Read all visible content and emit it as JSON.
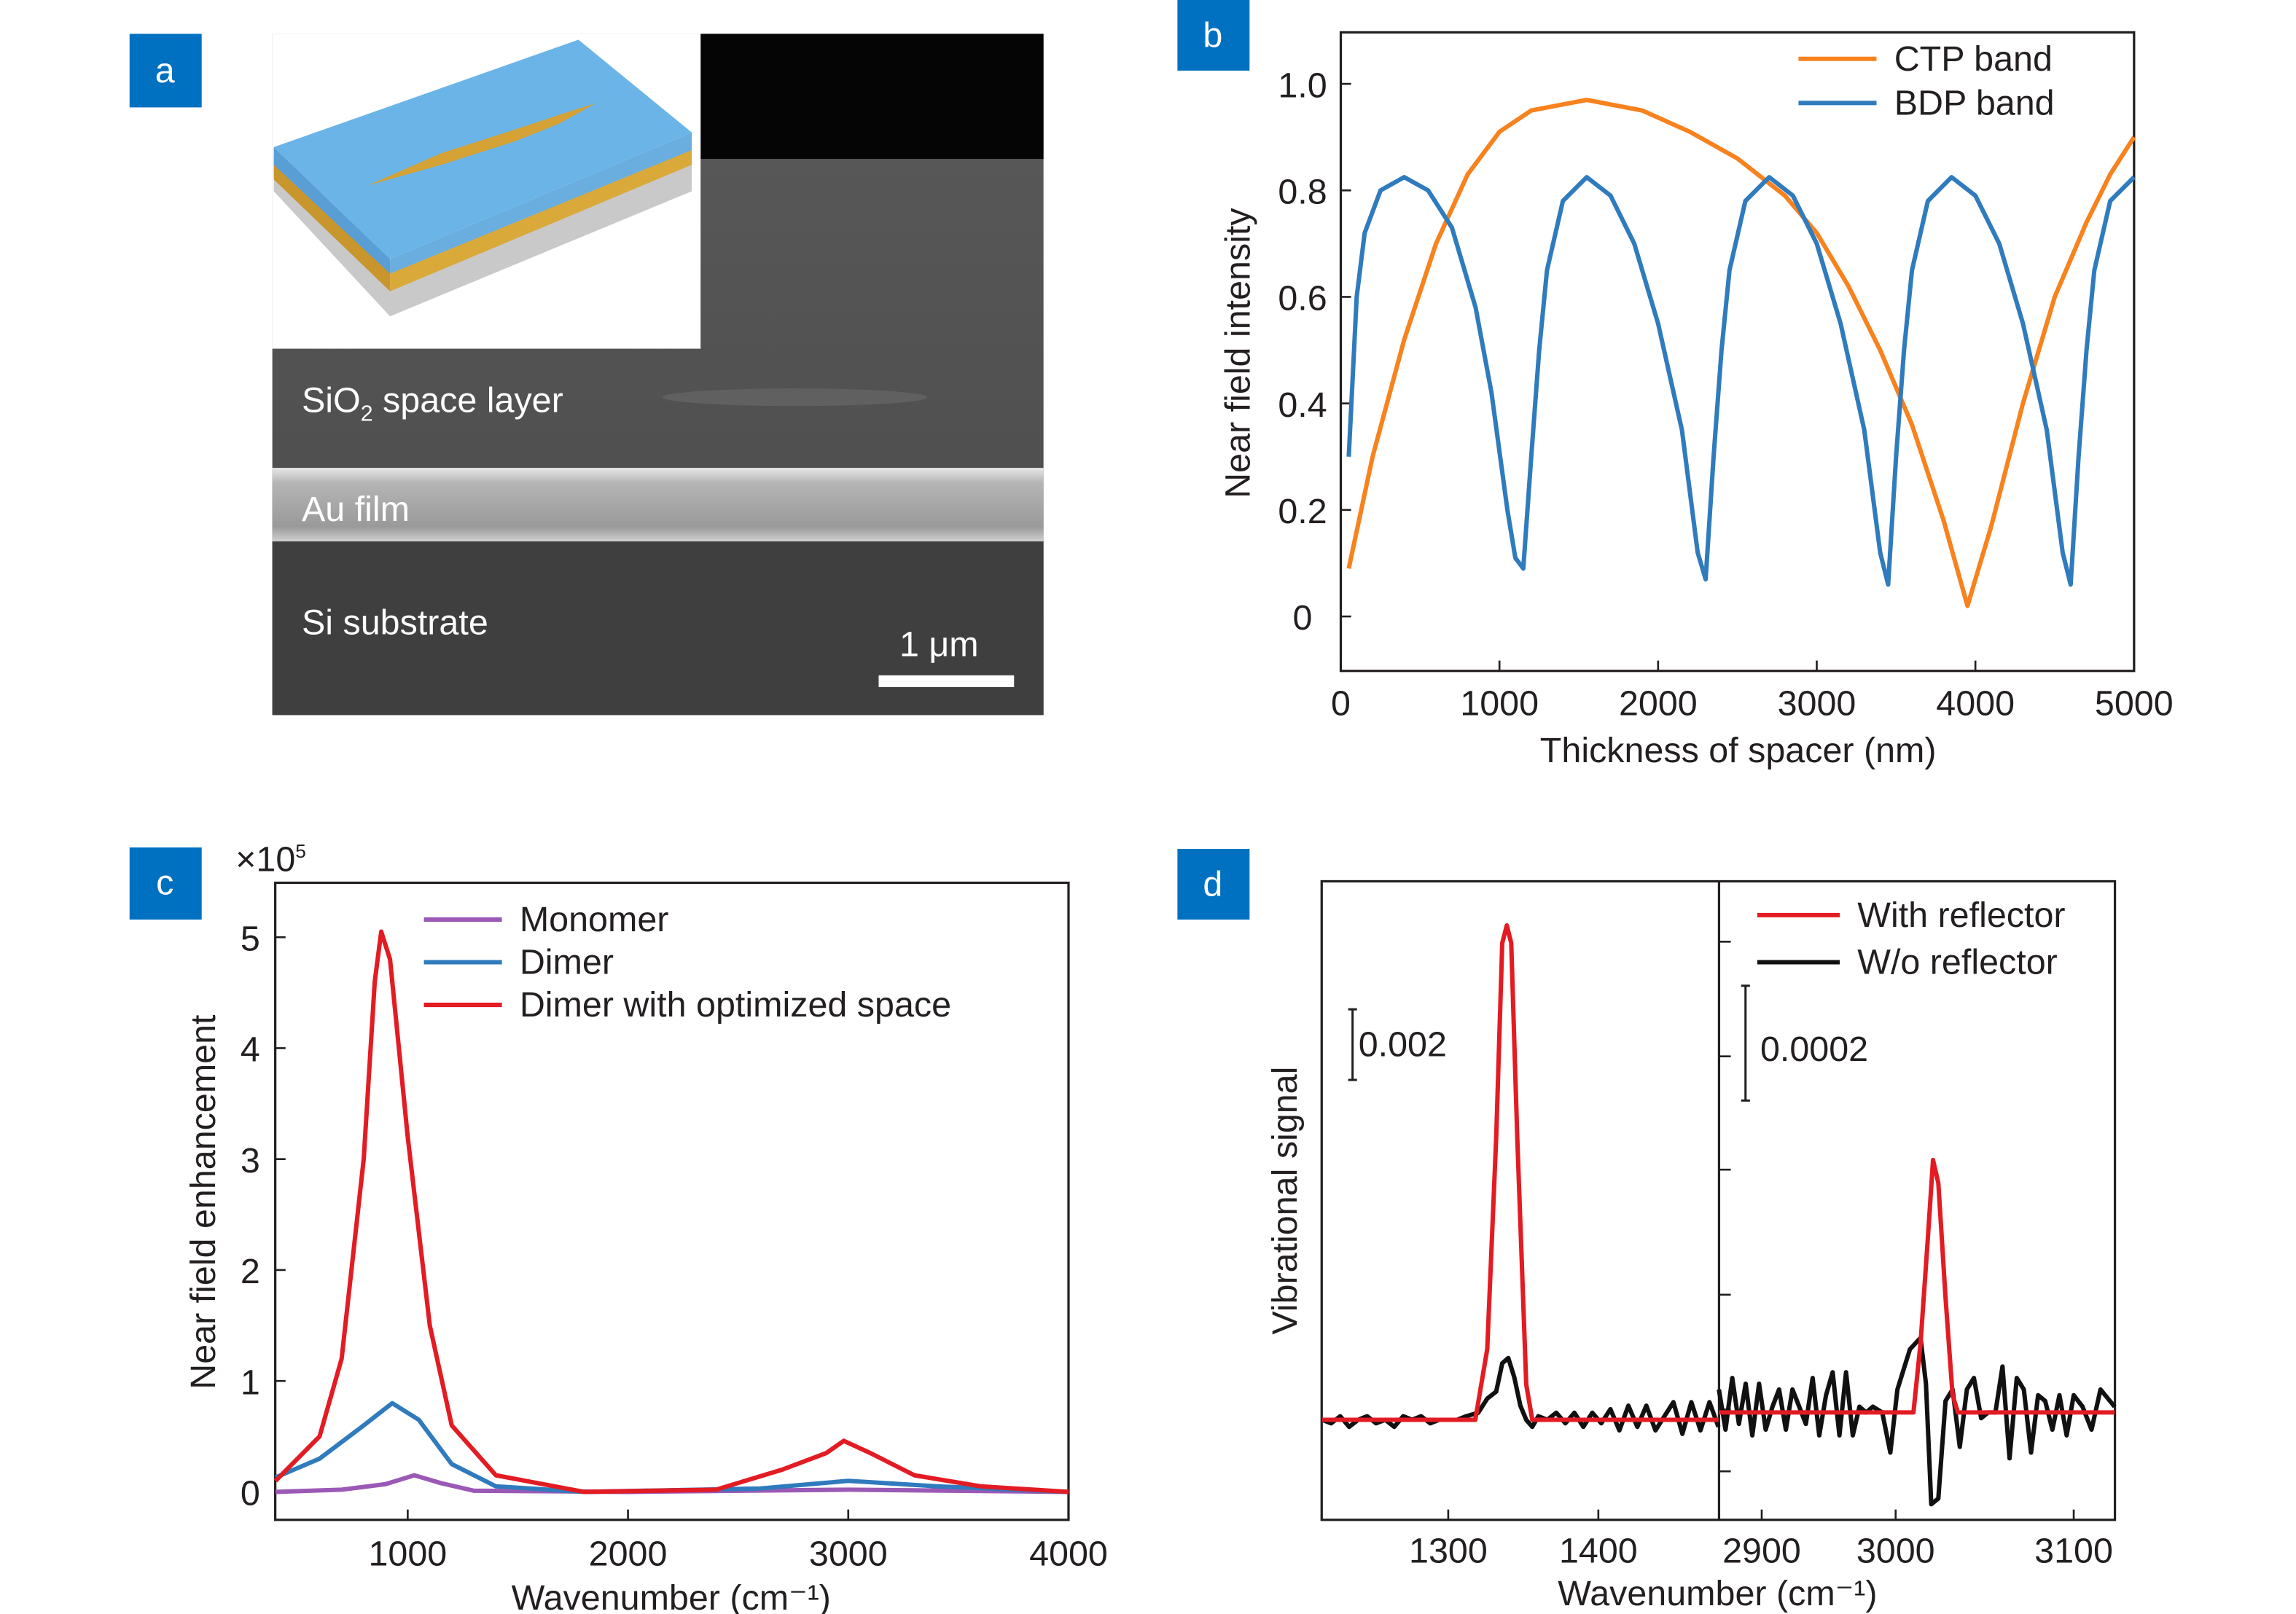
{
  "panels": {
    "a": {
      "label": "a",
      "sio2_text": "SiO",
      "sio2_sub": "2",
      "sio2_rest": " space layer",
      "au_text": "Au film",
      "si_text": "Si substrate",
      "scale_bar": "1 μm"
    },
    "b": {
      "label": "b"
    },
    "c": {
      "label": "c",
      "multiplier": "×10",
      "multiplier_exp": "5"
    },
    "d": {
      "label": "d",
      "scale_left": "0.002",
      "scale_right": "0.0002"
    }
  },
  "colors": {
    "label_box": "#0070c0",
    "orange": "#f7821e",
    "blue": "#2f7bbd",
    "red": "#e31b23",
    "purple": "#9b59b6",
    "black": "#111111"
  },
  "chart_data": [
    {
      "id": "b",
      "type": "line",
      "xlabel": "Thickness of spacer (nm)",
      "ylabel": "Near field intensity",
      "xlim": [
        0,
        5000
      ],
      "ylim": [
        -0.1,
        1.1
      ],
      "xticks": [
        "0",
        "1000",
        "2000",
        "3000",
        "4000",
        "5000"
      ],
      "yticks": [
        "0",
        "0.2",
        "0.4",
        "0.6",
        "0.8",
        "1.0"
      ],
      "legend": "top-right",
      "grid": false,
      "series": [
        {
          "name": "CTP band",
          "color": "#f7821e",
          "points": [
            [
              50,
              0.09
            ],
            [
              200,
              0.3
            ],
            [
              400,
              0.52
            ],
            [
              600,
              0.7
            ],
            [
              800,
              0.83
            ],
            [
              1000,
              0.91
            ],
            [
              1200,
              0.95
            ],
            [
              1550,
              0.97
            ],
            [
              1900,
              0.95
            ],
            [
              2200,
              0.91
            ],
            [
              2500,
              0.86
            ],
            [
              2800,
              0.79
            ],
            [
              3000,
              0.72
            ],
            [
              3200,
              0.62
            ],
            [
              3400,
              0.5
            ],
            [
              3600,
              0.36
            ],
            [
              3800,
              0.18
            ],
            [
              3950,
              0.02
            ],
            [
              4100,
              0.17
            ],
            [
              4300,
              0.4
            ],
            [
              4500,
              0.6
            ],
            [
              4700,
              0.74
            ],
            [
              4850,
              0.83
            ],
            [
              5000,
              0.9
            ]
          ]
        },
        {
          "name": "BDP band",
          "color": "#2f7bbd",
          "points": [
            [
              50,
              0.3
            ],
            [
              100,
              0.6
            ],
            [
              150,
              0.72
            ],
            [
              250,
              0.8
            ],
            [
              400,
              0.825
            ],
            [
              550,
              0.8
            ],
            [
              700,
              0.73
            ],
            [
              850,
              0.58
            ],
            [
              950,
              0.42
            ],
            [
              1050,
              0.2
            ],
            [
              1100,
              0.11
            ],
            [
              1150,
              0.09
            ],
            [
              1200,
              0.3
            ],
            [
              1250,
              0.5
            ],
            [
              1300,
              0.65
            ],
            [
              1400,
              0.78
            ],
            [
              1550,
              0.825
            ],
            [
              1700,
              0.79
            ],
            [
              1850,
              0.7
            ],
            [
              2000,
              0.55
            ],
            [
              2150,
              0.35
            ],
            [
              2250,
              0.12
            ],
            [
              2300,
              0.07
            ],
            [
              2350,
              0.3
            ],
            [
              2400,
              0.5
            ],
            [
              2450,
              0.65
            ],
            [
              2550,
              0.78
            ],
            [
              2700,
              0.825
            ],
            [
              2850,
              0.79
            ],
            [
              3000,
              0.7
            ],
            [
              3150,
              0.55
            ],
            [
              3300,
              0.35
            ],
            [
              3400,
              0.12
            ],
            [
              3450,
              0.06
            ],
            [
              3500,
              0.3
            ],
            [
              3550,
              0.5
            ],
            [
              3600,
              0.65
            ],
            [
              3700,
              0.78
            ],
            [
              3850,
              0.825
            ],
            [
              4000,
              0.79
            ],
            [
              4150,
              0.7
            ],
            [
              4300,
              0.55
            ],
            [
              4450,
              0.35
            ],
            [
              4550,
              0.12
            ],
            [
              4600,
              0.06
            ],
            [
              4650,
              0.3
            ],
            [
              4700,
              0.5
            ],
            [
              4750,
              0.65
            ],
            [
              4850,
              0.78
            ],
            [
              5000,
              0.825
            ]
          ]
        }
      ]
    },
    {
      "id": "c",
      "type": "line",
      "xlabel": "Wavenumber (cm⁻¹)",
      "ylabel": "Near field enhancement",
      "xlim": [
        400,
        4000
      ],
      "ylim": [
        -0.25,
        5.5
      ],
      "xticks": [
        "1000",
        "2000",
        "3000",
        "4000"
      ],
      "yticks": [
        "0",
        "1",
        "2",
        "3",
        "4",
        "5"
      ],
      "legend": "top-right",
      "grid": false,
      "series": [
        {
          "name": "Monomer",
          "color": "#9b59b6",
          "points": [
            [
              400,
              0
            ],
            [
              700,
              0.02
            ],
            [
              900,
              0.07
            ],
            [
              1030,
              0.15
            ],
            [
              1150,
              0.08
            ],
            [
              1300,
              0.01
            ],
            [
              2000,
              0
            ],
            [
              3000,
              0.02
            ],
            [
              4000,
              0
            ]
          ]
        },
        {
          "name": "Dimer",
          "color": "#2f7bbd",
          "points": [
            [
              400,
              0.13
            ],
            [
              600,
              0.3
            ],
            [
              800,
              0.6
            ],
            [
              930,
              0.8
            ],
            [
              1050,
              0.65
            ],
            [
              1200,
              0.25
            ],
            [
              1400,
              0.05
            ],
            [
              1800,
              0
            ],
            [
              2600,
              0.03
            ],
            [
              3000,
              0.1
            ],
            [
              3400,
              0.05
            ],
            [
              4000,
              0
            ]
          ]
        },
        {
          "name": "Dimer with optimized space",
          "color": "#e31b23",
          "points": [
            [
              400,
              0.1
            ],
            [
              600,
              0.5
            ],
            [
              700,
              1.2
            ],
            [
              800,
              3
            ],
            [
              850,
              4.6
            ],
            [
              880,
              5.05
            ],
            [
              920,
              4.8
            ],
            [
              1000,
              3.2
            ],
            [
              1100,
              1.5
            ],
            [
              1200,
              0.6
            ],
            [
              1400,
              0.15
            ],
            [
              1800,
              0
            ],
            [
              2400,
              0.02
            ],
            [
              2700,
              0.2
            ],
            [
              2900,
              0.35
            ],
            [
              2980,
              0.46
            ],
            [
              3100,
              0.35
            ],
            [
              3300,
              0.15
            ],
            [
              3600,
              0.05
            ],
            [
              4000,
              0
            ]
          ]
        }
      ]
    },
    {
      "id": "d",
      "type": "line",
      "xlabel": "Wavenumber (cm⁻¹)",
      "ylabel": "Vibrational signal",
      "broken_x_axis": true,
      "left": {
        "xlim": [
          1216,
          1480
        ],
        "ylim": [
          -0.0028,
          0.0152
        ],
        "xticks": [
          "1300",
          "1400"
        ]
      },
      "right": {
        "xlim": [
          2868,
          3123
        ],
        "ylim": [
          -0.00019,
          0.00093
        ],
        "xticks": [
          "2900",
          "3000",
          "3100"
        ]
      },
      "legend": "top-right",
      "grid": false,
      "series": [
        {
          "name": "With reflector",
          "color": "#e31b23",
          "left": [
            [
              1216,
              0
            ],
            [
              1318,
              0
            ],
            [
              1326,
              0.002
            ],
            [
              1332,
              0.008
            ],
            [
              1336,
              0.0135
            ],
            [
              1339,
              0.014
            ],
            [
              1342,
              0.0135
            ],
            [
              1346,
              0.008
            ],
            [
              1352,
              0.001
            ],
            [
              1356,
              0
            ],
            [
              1480,
              0
            ]
          ],
          "right": [
            [
              2868,
              0
            ],
            [
              3010,
              0
            ],
            [
              3014,
              0.00012
            ],
            [
              3018,
              0.0003
            ],
            [
              3021,
              0.00044
            ],
            [
              3024,
              0.0004
            ],
            [
              3028,
              0.0002
            ],
            [
              3032,
              3e-05
            ],
            [
              3035,
              0
            ],
            [
              3123,
              0
            ]
          ]
        },
        {
          "name": "W/o reflector",
          "color": "#111111",
          "left": [
            [
              1216,
              0
            ],
            [
              1222,
              -0.0001
            ],
            [
              1228,
              0.0001
            ],
            [
              1234,
              -0.0002
            ],
            [
              1240,
              0
            ],
            [
              1246,
              0.0001
            ],
            [
              1252,
              -0.0001
            ],
            [
              1258,
              0
            ],
            [
              1264,
              -0.0002
            ],
            [
              1270,
              0.0001
            ],
            [
              1276,
              0
            ],
            [
              1282,
              0.0001
            ],
            [
              1288,
              -0.0001
            ],
            [
              1294,
              0
            ],
            [
              1300,
              0
            ],
            [
              1306,
              0
            ],
            [
              1312,
              0.0001
            ],
            [
              1320,
              0.0002
            ],
            [
              1326,
              0.0006
            ],
            [
              1332,
              0.0008
            ],
            [
              1336,
              0.0016
            ],
            [
              1340,
              0.00175
            ],
            [
              1344,
              0.0012
            ],
            [
              1348,
              0.0004
            ],
            [
              1352,
              0
            ],
            [
              1356,
              -0.0002
            ],
            [
              1360,
              0.0001
            ],
            [
              1366,
              0
            ],
            [
              1372,
              0.0002
            ],
            [
              1378,
              -0.0001
            ],
            [
              1384,
              0.0002
            ],
            [
              1390,
              -0.0002
            ],
            [
              1396,
              0.0002
            ],
            [
              1402,
              -0.0001
            ],
            [
              1408,
              0.0003
            ],
            [
              1414,
              -0.0003
            ],
            [
              1420,
              0.0004
            ],
            [
              1426,
              -0.0002
            ],
            [
              1432,
              0.0004
            ],
            [
              1438,
              -0.0003
            ],
            [
              1444,
              0.0001
            ],
            [
              1450,
              0.0005
            ],
            [
              1456,
              -0.0004
            ],
            [
              1462,
              0.0005
            ],
            [
              1468,
              -0.0003
            ],
            [
              1474,
              0.0005
            ],
            [
              1480,
              -0.0002
            ]
          ],
          "right": [
            [
              2868,
              4e-05
            ],
            [
              2873,
              -3e-05
            ],
            [
              2878,
              6e-05
            ],
            [
              2883,
              -2e-05
            ],
            [
              2888,
              5e-05
            ],
            [
              2893,
              -4e-05
            ],
            [
              2898,
              5e-05
            ],
            [
              2903,
              -3e-05
            ],
            [
              2908,
              1e-05
            ],
            [
              2913,
              4e-05
            ],
            [
              2918,
              -3e-05
            ],
            [
              2923,
              4e-05
            ],
            [
              2928,
              1e-05
            ],
            [
              2933,
              -2e-05
            ],
            [
              2938,
              6e-05
            ],
            [
              2943,
              -4e-05
            ],
            [
              2948,
              3e-05
            ],
            [
              2953,
              7e-05
            ],
            [
              2958,
              -4e-05
            ],
            [
              2963,
              7e-05
            ],
            [
              2968,
              -4e-05
            ],
            [
              2973,
              1e-05
            ],
            [
              2978,
              0
            ],
            [
              2983,
              1e-05
            ],
            [
              2990,
              0
            ],
            [
              2996,
              -7e-05
            ],
            [
              3001,
              4e-05
            ],
            [
              3008,
              0.00011
            ],
            [
              3014,
              0.00013
            ],
            [
              3017,
              5e-05
            ],
            [
              3020,
              -0.00016
            ],
            [
              3024,
              -0.00015
            ],
            [
              3028,
              2e-05
            ],
            [
              3032,
              4e-05
            ],
            [
              3036,
              -6e-05
            ],
            [
              3040,
              4e-05
            ],
            [
              3044,
              6e-05
            ],
            [
              3048,
              -1e-05
            ],
            [
              3052,
              0
            ],
            [
              3056,
              0
            ],
            [
              3060,
              8e-05
            ],
            [
              3064,
              -8e-05
            ],
            [
              3068,
              6e-05
            ],
            [
              3072,
              4e-05
            ],
            [
              3076,
              -7e-05
            ],
            [
              3080,
              3e-05
            ],
            [
              3084,
              2e-05
            ],
            [
              3088,
              -3e-05
            ],
            [
              3092,
              3e-05
            ],
            [
              3096,
              -4e-05
            ],
            [
              3100,
              3e-05
            ],
            [
              3105,
              1e-05
            ],
            [
              3110,
              -3e-05
            ],
            [
              3115,
              4e-05
            ],
            [
              3123,
              1e-05
            ]
          ]
        }
      ]
    }
  ]
}
